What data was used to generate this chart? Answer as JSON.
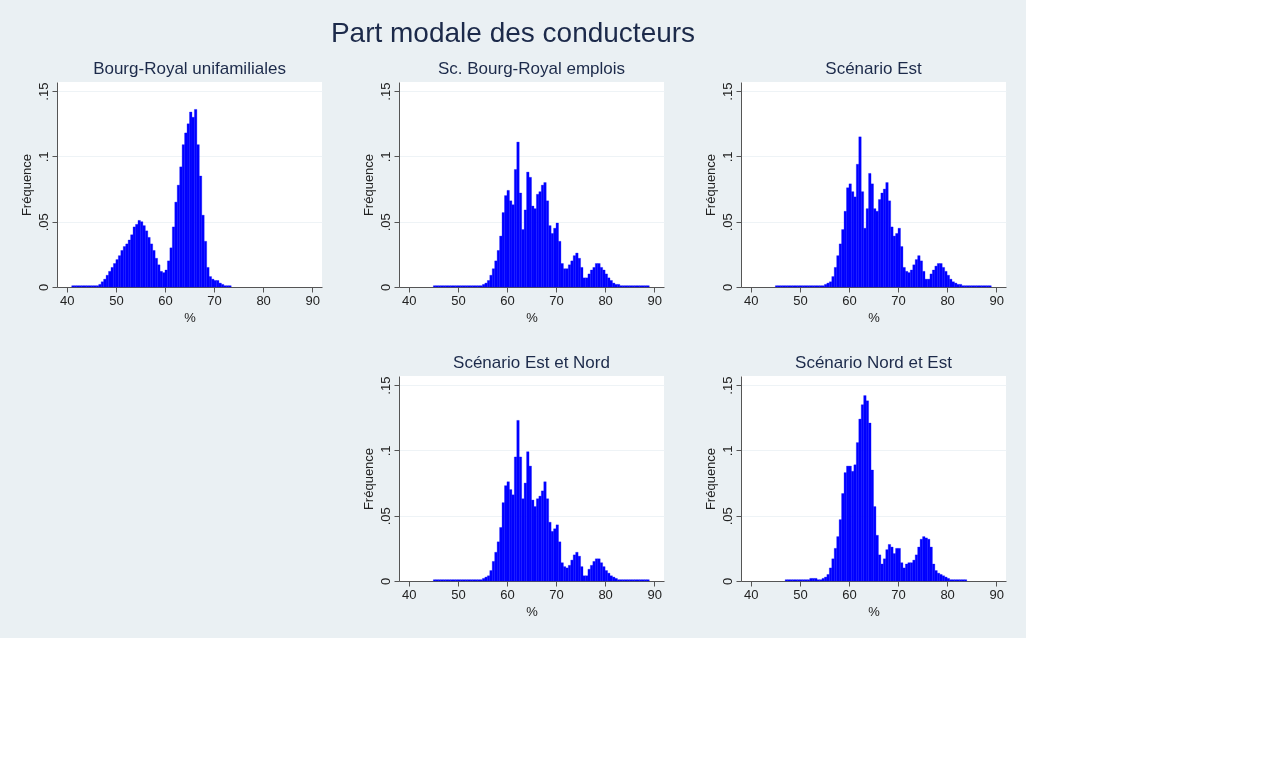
{
  "chart_data": [
    {
      "type": "other",
      "title": "Part modale des conducteurs"
    },
    {
      "type": "histogram",
      "title": "Bourg-Royal unifamiliales",
      "xlabel": "%",
      "ylabel": "Fréquence",
      "color": "#0000ff",
      "grid": "y",
      "xlim": [
        38,
        92
      ],
      "ylim": [
        0,
        0.157
      ],
      "xticks": [
        40,
        50,
        60,
        70,
        80,
        90
      ],
      "yticks": [
        0,
        {
          "value": 0.05,
          "label": ".05"
        },
        {
          "value": 0.1,
          "label": ".1"
        },
        {
          "value": 0.15,
          "label": ".15"
        }
      ],
      "bins": [
        41,
        41.5,
        42,
        42.5,
        43,
        43.5,
        44,
        44.5,
        45,
        45.5,
        46,
        46.5,
        47,
        47.5,
        48,
        48.5,
        49,
        49.5,
        50,
        50.5,
        51,
        51.5,
        52,
        52.5,
        53,
        53.5,
        54,
        54.5,
        55,
        55.5,
        56,
        56.5,
        57,
        57.5,
        58,
        58.5,
        59,
        59.5,
        60,
        60.5,
        61,
        61.5,
        62,
        62.5,
        63,
        63.5,
        64,
        64.5,
        65,
        65.5,
        66,
        66.5,
        67,
        67.5,
        68,
        68.5,
        69,
        69.5,
        70,
        70.5,
        71,
        71.5,
        72,
        72.5,
        73,
        73.5
      ],
      "values": [
        0.001,
        0.001,
        0.001,
        0.001,
        0.001,
        0.001,
        0.001,
        0.001,
        0.001,
        0.001,
        0.001,
        0.002,
        0.004,
        0.006,
        0.009,
        0.012,
        0.015,
        0.018,
        0.021,
        0.024,
        0.028,
        0.031,
        0.033,
        0.036,
        0.04,
        0.046,
        0.048,
        0.051,
        0.05,
        0.047,
        0.043,
        0.038,
        0.033,
        0.028,
        0.022,
        0.017,
        0.012,
        0.011,
        0.013,
        0.02,
        0.03,
        0.046,
        0.065,
        0.078,
        0.092,
        0.109,
        0.118,
        0.125,
        0.134,
        0.13,
        0.136,
        0.109,
        0.085,
        0.055,
        0.035,
        0.015,
        0.008,
        0.006,
        0.005,
        0.005,
        0.003,
        0.002,
        0.001,
        0.001,
        0.001
      ]
    },
    {
      "type": "histogram",
      "title": "Sc. Bourg-Royal emplois",
      "xlabel": "%",
      "ylabel": "Fréquence",
      "color": "#0000ff",
      "grid": "y",
      "xlim": [
        38,
        92
      ],
      "ylim": [
        0,
        0.157
      ],
      "xticks": [
        40,
        50,
        60,
        70,
        80,
        90
      ],
      "yticks": [
        0,
        {
          "value": 0.05,
          "label": ".05"
        },
        {
          "value": 0.1,
          "label": ".1"
        },
        {
          "value": 0.15,
          "label": ".15"
        }
      ],
      "bins": [
        45,
        45.5,
        46,
        46.5,
        47,
        47.5,
        48,
        48.5,
        49,
        49.5,
        50,
        50.5,
        51,
        51.5,
        52,
        52.5,
        53,
        53.5,
        54,
        54.5,
        55,
        55.5,
        56,
        56.5,
        57,
        57.5,
        58,
        58.5,
        59,
        59.5,
        60,
        60.5,
        61,
        61.5,
        62,
        62.5,
        63,
        63.5,
        64,
        64.5,
        65,
        65.5,
        66,
        66.5,
        67,
        67.5,
        68,
        68.5,
        69,
        69.5,
        70,
        70.5,
        71,
        71.5,
        72,
        72.5,
        73,
        73.5,
        74,
        74.5,
        75,
        75.5,
        76,
        76.5,
        77,
        77.5,
        78,
        78.5,
        79,
        79.5,
        80,
        80.5,
        81,
        81.5,
        82,
        82.5,
        83,
        83.5,
        84,
        84.5,
        85,
        85.5,
        86,
        86.5,
        87,
        87.5,
        88,
        88.5,
        89
      ],
      "values": [
        0.001,
        0.001,
        0.001,
        0.001,
        0.001,
        0.001,
        0.001,
        0.001,
        0.001,
        0.001,
        0.001,
        0.001,
        0.001,
        0.001,
        0.001,
        0.001,
        0.001,
        0.001,
        0.001,
        0.001,
        0.002,
        0.003,
        0.005,
        0.009,
        0.014,
        0.02,
        0.028,
        0.039,
        0.057,
        0.07,
        0.074,
        0.066,
        0.063,
        0.09,
        0.111,
        0.072,
        0.044,
        0.059,
        0.088,
        0.084,
        0.062,
        0.06,
        0.071,
        0.073,
        0.078,
        0.08,
        0.066,
        0.047,
        0.041,
        0.045,
        0.049,
        0.035,
        0.018,
        0.014,
        0.014,
        0.017,
        0.02,
        0.024,
        0.026,
        0.022,
        0.015,
        0.007,
        0.007,
        0.01,
        0.013,
        0.015,
        0.018,
        0.018,
        0.015,
        0.013,
        0.01,
        0.007,
        0.005,
        0.003,
        0.002,
        0.002,
        0.001,
        0.001,
        0.001,
        0.001,
        0.001,
        0.001,
        0.001,
        0.001,
        0.001,
        0.001,
        0.001,
        0.001
      ]
    },
    {
      "type": "histogram",
      "title": "Scénario Est",
      "xlabel": "%",
      "ylabel": "Fréquence",
      "color": "#0000ff",
      "grid": "y",
      "xlim": [
        38,
        92
      ],
      "ylim": [
        0,
        0.157
      ],
      "xticks": [
        40,
        50,
        60,
        70,
        80,
        90
      ],
      "yticks": [
        0,
        {
          "value": 0.05,
          "label": ".05"
        },
        {
          "value": 0.1,
          "label": ".1"
        },
        {
          "value": 0.15,
          "label": ".15"
        }
      ],
      "bins": [
        45,
        45.5,
        46,
        46.5,
        47,
        47.5,
        48,
        48.5,
        49,
        49.5,
        50,
        50.5,
        51,
        51.5,
        52,
        52.5,
        53,
        53.5,
        54,
        54.5,
        55,
        55.5,
        56,
        56.5,
        57,
        57.5,
        58,
        58.5,
        59,
        59.5,
        60,
        60.5,
        61,
        61.5,
        62,
        62.5,
        63,
        63.5,
        64,
        64.5,
        65,
        65.5,
        66,
        66.5,
        67,
        67.5,
        68,
        68.5,
        69,
        69.5,
        70,
        70.5,
        71,
        71.5,
        72,
        72.5,
        73,
        73.5,
        74,
        74.5,
        75,
        75.5,
        76,
        76.5,
        77,
        77.5,
        78,
        78.5,
        79,
        79.5,
        80,
        80.5,
        81,
        81.5,
        82,
        82.5,
        83,
        83.5,
        84,
        84.5,
        85,
        85.5,
        86,
        86.5,
        87,
        87.5,
        88,
        88.5,
        89
      ],
      "values": [
        0.001,
        0.001,
        0.001,
        0.001,
        0.001,
        0.001,
        0.001,
        0.001,
        0.001,
        0.001,
        0.001,
        0.001,
        0.001,
        0.001,
        0.001,
        0.001,
        0.001,
        0.001,
        0.001,
        0.001,
        0.002,
        0.003,
        0.004,
        0.008,
        0.015,
        0.024,
        0.033,
        0.044,
        0.058,
        0.076,
        0.079,
        0.073,
        0.069,
        0.094,
        0.115,
        0.073,
        0.045,
        0.06,
        0.087,
        0.079,
        0.06,
        0.058,
        0.067,
        0.072,
        0.075,
        0.08,
        0.066,
        0.046,
        0.039,
        0.041,
        0.045,
        0.031,
        0.015,
        0.012,
        0.011,
        0.013,
        0.017,
        0.021,
        0.024,
        0.02,
        0.012,
        0.006,
        0.006,
        0.01,
        0.013,
        0.016,
        0.018,
        0.018,
        0.015,
        0.012,
        0.009,
        0.006,
        0.004,
        0.003,
        0.002,
        0.002,
        0.001,
        0.001,
        0.001,
        0.001,
        0.001,
        0.001,
        0.001,
        0.001,
        0.001,
        0.001,
        0.001,
        0.001
      ]
    },
    {
      "type": "histogram",
      "title": "Scénario Est et Nord",
      "xlabel": "%",
      "ylabel": "Fréquence",
      "color": "#0000ff",
      "grid": "y",
      "xlim": [
        38,
        92
      ],
      "ylim": [
        0,
        0.157
      ],
      "xticks": [
        40,
        50,
        60,
        70,
        80,
        90
      ],
      "yticks": [
        0,
        {
          "value": 0.05,
          "label": ".05"
        },
        {
          "value": 0.1,
          "label": ".1"
        },
        {
          "value": 0.15,
          "label": ".15"
        }
      ],
      "bins": [
        45,
        45.5,
        46,
        46.5,
        47,
        47.5,
        48,
        48.5,
        49,
        49.5,
        50,
        50.5,
        51,
        51.5,
        52,
        52.5,
        53,
        53.5,
        54,
        54.5,
        55,
        55.5,
        56,
        56.5,
        57,
        57.5,
        58,
        58.5,
        59,
        59.5,
        60,
        60.5,
        61,
        61.5,
        62,
        62.5,
        63,
        63.5,
        64,
        64.5,
        65,
        65.5,
        66,
        66.5,
        67,
        67.5,
        68,
        68.5,
        69,
        69.5,
        70,
        70.5,
        71,
        71.5,
        72,
        72.5,
        73,
        73.5,
        74,
        74.5,
        75,
        75.5,
        76,
        76.5,
        77,
        77.5,
        78,
        78.5,
        79,
        79.5,
        80,
        80.5,
        81,
        81.5,
        82,
        82.5,
        83,
        83.5,
        84,
        84.5,
        85,
        85.5,
        86,
        86.5,
        87,
        87.5,
        88,
        88.5,
        89
      ],
      "values": [
        0.001,
        0.001,
        0.001,
        0.001,
        0.001,
        0.001,
        0.001,
        0.001,
        0.001,
        0.001,
        0.001,
        0.001,
        0.001,
        0.001,
        0.001,
        0.001,
        0.001,
        0.001,
        0.001,
        0.001,
        0.002,
        0.003,
        0.004,
        0.008,
        0.015,
        0.022,
        0.03,
        0.041,
        0.06,
        0.073,
        0.076,
        0.07,
        0.066,
        0.095,
        0.123,
        0.095,
        0.063,
        0.075,
        0.099,
        0.088,
        0.062,
        0.057,
        0.063,
        0.065,
        0.069,
        0.076,
        0.063,
        0.045,
        0.038,
        0.04,
        0.043,
        0.03,
        0.014,
        0.011,
        0.01,
        0.012,
        0.016,
        0.02,
        0.022,
        0.019,
        0.011,
        0.004,
        0.004,
        0.009,
        0.012,
        0.015,
        0.017,
        0.017,
        0.014,
        0.011,
        0.008,
        0.006,
        0.004,
        0.003,
        0.002,
        0.001,
        0.001,
        0.001,
        0.001,
        0.001,
        0.001,
        0.001,
        0.001,
        0.001,
        0.001,
        0.001,
        0.001,
        0.001
      ]
    },
    {
      "type": "histogram",
      "title": "Scénario Nord et Est",
      "xlabel": "%",
      "ylabel": "Fréquence",
      "color": "#0000ff",
      "grid": "y",
      "xlim": [
        38,
        92
      ],
      "ylim": [
        0,
        0.157
      ],
      "xticks": [
        40,
        50,
        60,
        70,
        80,
        90
      ],
      "yticks": [
        0,
        {
          "value": 0.05,
          "label": ".05"
        },
        {
          "value": 0.1,
          "label": ".1"
        },
        {
          "value": 0.15,
          "label": ".15"
        }
      ],
      "bins": [
        47,
        47.5,
        48,
        48.5,
        49,
        49.5,
        50,
        50.5,
        51,
        51.5,
        52,
        52.5,
        53,
        53.5,
        54,
        54.5,
        55,
        55.5,
        56,
        56.5,
        57,
        57.5,
        58,
        58.5,
        59,
        59.5,
        60,
        60.5,
        61,
        61.5,
        62,
        62.5,
        63,
        63.5,
        64,
        64.5,
        65,
        65.5,
        66,
        66.5,
        67,
        67.5,
        68,
        68.5,
        69,
        69.5,
        70,
        70.5,
        71,
        71.5,
        72,
        72.5,
        73,
        73.5,
        74,
        74.5,
        75,
        75.5,
        76,
        76.5,
        77,
        77.5,
        78,
        78.5,
        79,
        79.5,
        80,
        80.5,
        81,
        81.5,
        82,
        82.5,
        83,
        83.5,
        84
      ],
      "values": [
        0.001,
        0.001,
        0.001,
        0.001,
        0.001,
        0.001,
        0.001,
        0.001,
        0.001,
        0.001,
        0.002,
        0.002,
        0.002,
        0.001,
        0.001,
        0.002,
        0.003,
        0.005,
        0.01,
        0.017,
        0.025,
        0.034,
        0.047,
        0.067,
        0.083,
        0.088,
        0.088,
        0.084,
        0.089,
        0.106,
        0.124,
        0.135,
        0.142,
        0.138,
        0.121,
        0.085,
        0.057,
        0.035,
        0.02,
        0.013,
        0.017,
        0.024,
        0.028,
        0.026,
        0.021,
        0.025,
        0.025,
        0.014,
        0.01,
        0.013,
        0.014,
        0.014,
        0.016,
        0.02,
        0.026,
        0.032,
        0.034,
        0.033,
        0.032,
        0.026,
        0.013,
        0.008,
        0.006,
        0.005,
        0.004,
        0.003,
        0.002,
        0.001,
        0.001,
        0.001,
        0.001,
        0.001,
        0.001,
        0.001
      ]
    }
  ]
}
